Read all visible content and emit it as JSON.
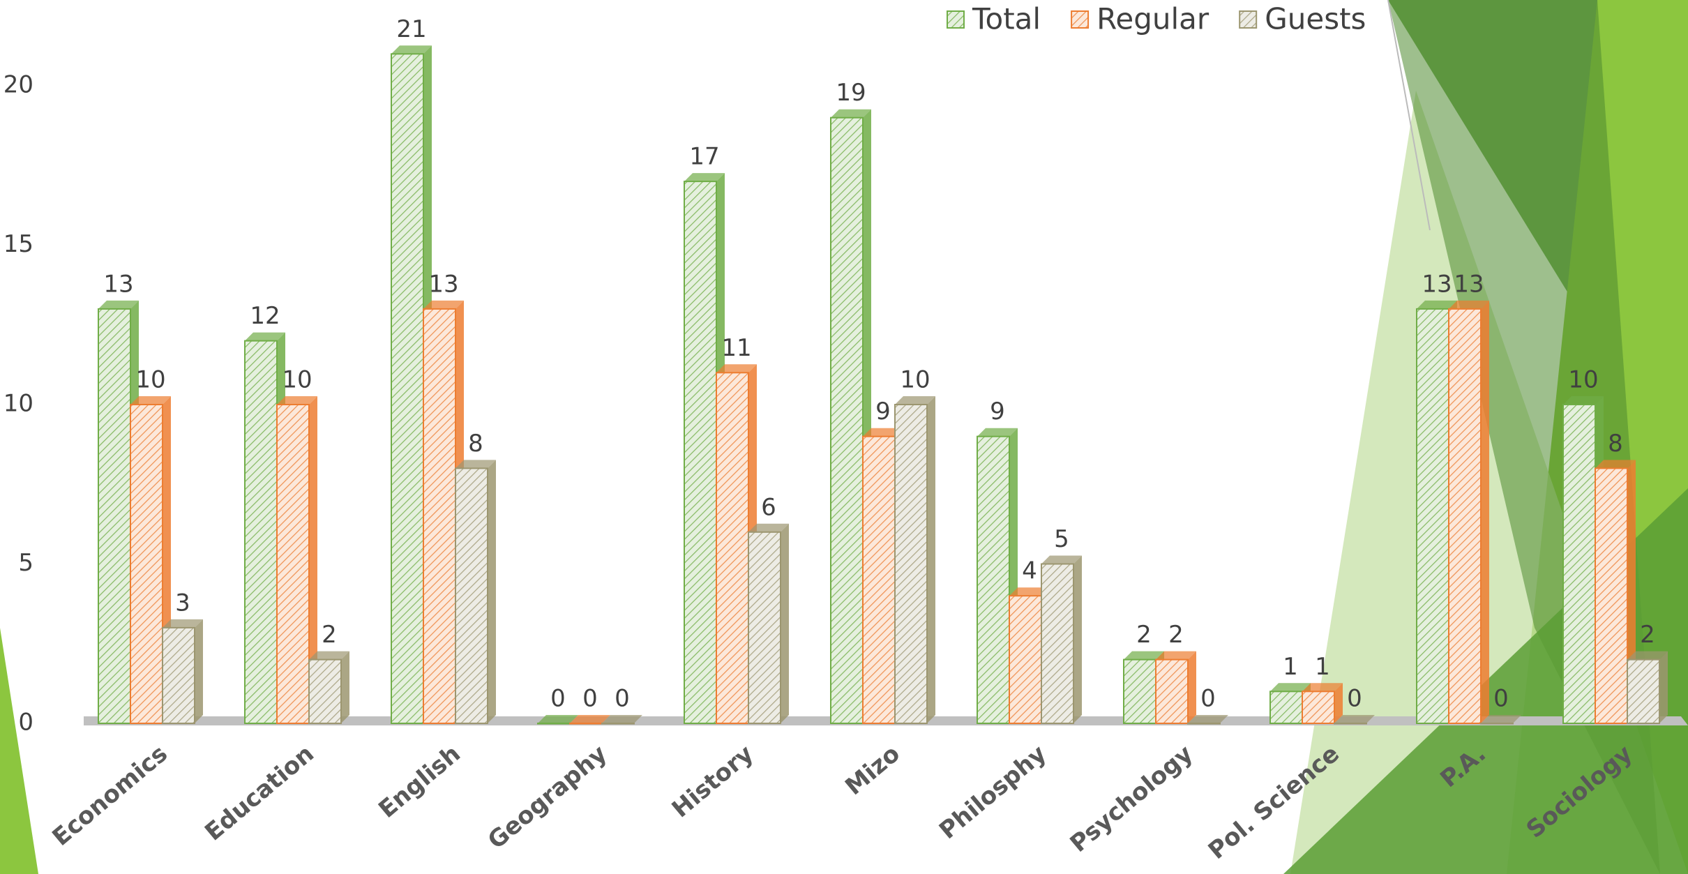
{
  "chart_data": {
    "type": "bar3d",
    "categories": [
      "Economics",
      "Education",
      "English",
      "Geography",
      "History",
      "Mizo",
      "Philosphy",
      "Psychology",
      "Pol. Science",
      "P.A.",
      "Sociology"
    ],
    "series": [
      {
        "name": "Total",
        "color": "#70ad47",
        "values": [
          13,
          12,
          21,
          0,
          17,
          19,
          9,
          2,
          1,
          13,
          10
        ]
      },
      {
        "name": "Regular",
        "color": "#ed7d31",
        "values": [
          10,
          10,
          13,
          0,
          11,
          9,
          4,
          2,
          1,
          13,
          8
        ]
      },
      {
        "name": "Guests",
        "color": "#9c9670",
        "values": [
          3,
          2,
          8,
          0,
          6,
          10,
          5,
          0,
          0,
          0,
          2
        ]
      }
    ],
    "ylim": [
      0,
      20
    ],
    "yticks": [
      0,
      5,
      10,
      15,
      20
    ],
    "grid": false,
    "legend": "top-right"
  }
}
